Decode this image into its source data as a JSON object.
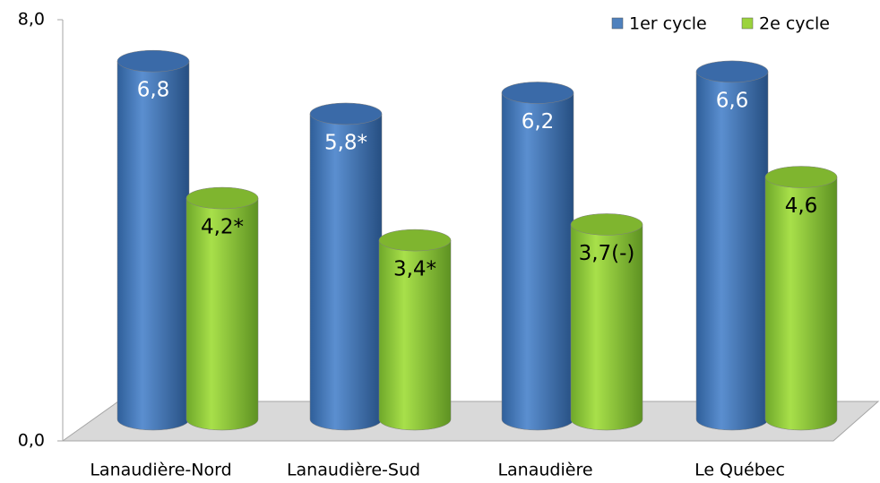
{
  "chart_data": {
    "type": "bar",
    "categories": [
      "Lanaudière-Nord",
      "Lanaudière-Sud",
      "Lanaudière",
      "Le Québec"
    ],
    "series": [
      {
        "name": "1er cycle",
        "color": "#4f81bd",
        "values": [
          6.8,
          5.8,
          6.2,
          6.6
        ],
        "value_labels": [
          "6,8",
          "5,8*",
          "6,2",
          "6,6"
        ]
      },
      {
        "name": "2e cycle",
        "color": "#9bd33c",
        "values": [
          4.2,
          3.4,
          3.7,
          4.6
        ],
        "value_labels": [
          "4,2*",
          "3,4*",
          "3,7(-)",
          "4,6"
        ]
      }
    ],
    "ylim": [
      0,
      8
    ],
    "yticks": [
      {
        "value": 0,
        "label": "0,0"
      },
      {
        "value": 8,
        "label": "8,0"
      }
    ],
    "grid": false,
    "legend": "top-right"
  }
}
